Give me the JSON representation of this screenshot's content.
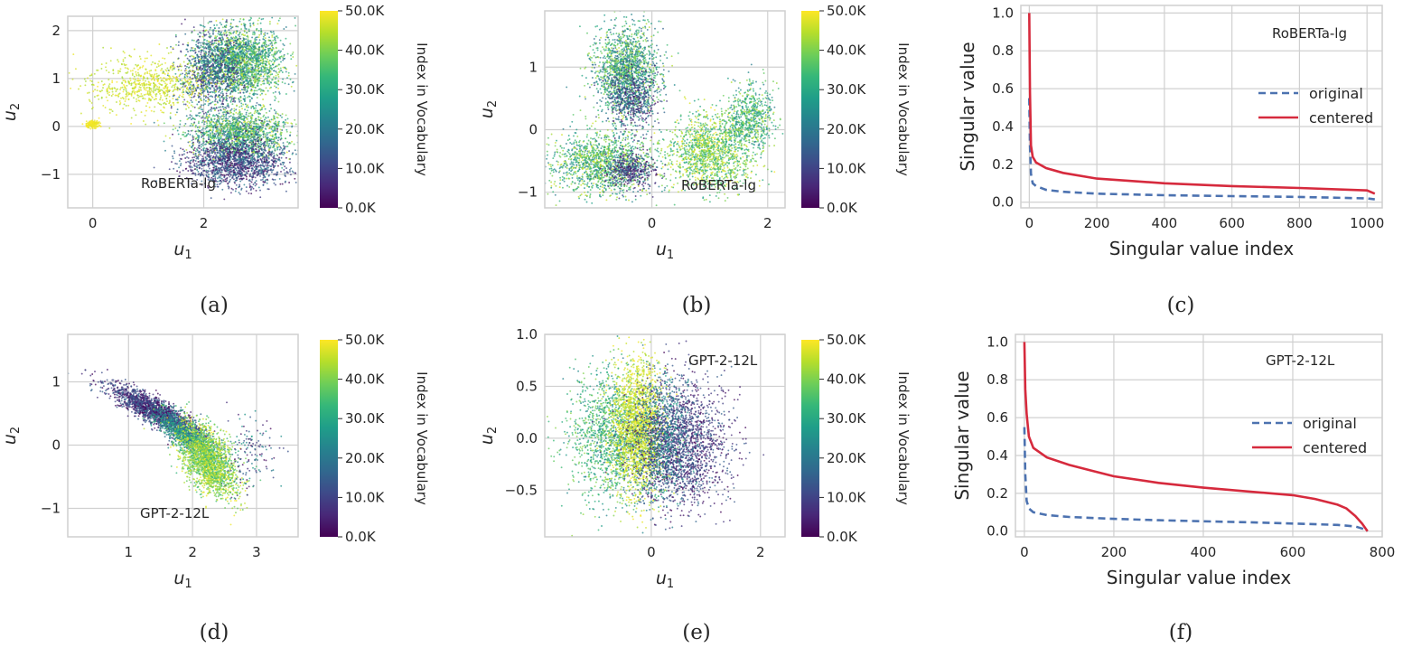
{
  "colors": {
    "viridis": [
      "#440154",
      "#482878",
      "#3e4a89",
      "#31688e",
      "#26828e",
      "#1f9e89",
      "#35b779",
      "#6ece58",
      "#b5de2b",
      "#fde725"
    ],
    "original": "#4c72b0",
    "centered": "#d62a3d"
  },
  "colorbar": {
    "label": "Index in Vocabulary",
    "ticks": [
      "50.0K",
      "40.0K",
      "30.0K",
      "20.0K",
      "10.0K",
      "0.0K"
    ]
  },
  "chart_data": [
    {
      "id": "a",
      "type": "scatter",
      "caption": "(a)",
      "annotation": "RoBERTa-lg",
      "xlabel": "u",
      "xlabel_sub": "1",
      "ylabel": "u",
      "ylabel_sub": "2",
      "xlim": [
        -0.45,
        3.7
      ],
      "ylim": [
        -1.7,
        2.3
      ],
      "xticks": [
        {
          "v": 0,
          "t": "0"
        },
        {
          "v": 2,
          "t": "2"
        }
      ],
      "yticks": [
        {
          "v": 2,
          "t": "2"
        },
        {
          "v": 1,
          "t": "1"
        },
        {
          "v": 0,
          "t": "0"
        },
        {
          "v": -1,
          "t": "−1"
        }
      ],
      "clusters": [
        {
          "x": 2.65,
          "y": 1.35,
          "sx": 0.4,
          "sy": 0.38,
          "n": 2200,
          "c": [
            0.35,
            0.95
          ]
        },
        {
          "x": 2.15,
          "y": 1.1,
          "sx": 0.28,
          "sy": 0.45,
          "n": 900,
          "c": [
            0.05,
            0.55
          ]
        },
        {
          "x": 2.65,
          "y": -0.15,
          "sx": 0.45,
          "sy": 0.25,
          "n": 1500,
          "c": [
            0.3,
            0.95
          ]
        },
        {
          "x": 2.6,
          "y": -0.75,
          "sx": 0.45,
          "sy": 0.25,
          "n": 1500,
          "c": [
            0.0,
            0.45
          ]
        },
        {
          "x": 1.0,
          "y": 0.85,
          "sx": 0.55,
          "sy": 0.28,
          "n": 700,
          "c": [
            0.85,
            1.0
          ]
        },
        {
          "x": 0.0,
          "y": 0.05,
          "sx": 0.06,
          "sy": 0.04,
          "n": 150,
          "c": [
            0.96,
            1.0
          ]
        }
      ]
    },
    {
      "id": "b",
      "type": "scatter",
      "caption": "(b)",
      "annotation": "RoBERTa-lg",
      "xlabel": "u",
      "xlabel_sub": "1",
      "ylabel": "u",
      "ylabel_sub": "2",
      "xlim": [
        -1.85,
        2.3
      ],
      "ylim": [
        -1.25,
        1.9
      ],
      "xticks": [
        {
          "v": 0,
          "t": "0"
        },
        {
          "v": 2,
          "t": "2"
        }
      ],
      "yticks": [
        {
          "v": 1,
          "t": "1"
        },
        {
          "v": 0,
          "t": "0"
        },
        {
          "v": -1,
          "t": "−1"
        }
      ],
      "clusters": [
        {
          "x": -0.45,
          "y": 0.95,
          "sx": 0.28,
          "sy": 0.35,
          "n": 1600,
          "c": [
            0.3,
            0.9
          ]
        },
        {
          "x": -0.35,
          "y": 0.5,
          "sx": 0.22,
          "sy": 0.25,
          "n": 500,
          "c": [
            0.02,
            0.45
          ]
        },
        {
          "x": -0.85,
          "y": -0.55,
          "sx": 0.45,
          "sy": 0.25,
          "n": 1400,
          "c": [
            0.4,
            0.95
          ]
        },
        {
          "x": -0.35,
          "y": -0.65,
          "sx": 0.22,
          "sy": 0.15,
          "n": 400,
          "c": [
            0.0,
            0.35
          ]
        },
        {
          "x": 1.0,
          "y": -0.35,
          "sx": 0.4,
          "sy": 0.3,
          "n": 1400,
          "c": [
            0.55,
            1.0
          ]
        },
        {
          "x": 1.7,
          "y": 0.2,
          "sx": 0.22,
          "sy": 0.25,
          "n": 600,
          "c": [
            0.4,
            0.9
          ]
        }
      ]
    },
    {
      "id": "c",
      "type": "line",
      "caption": "(c)",
      "annotation": "RoBERTa-lg",
      "xlabel": "Singular value index",
      "ylabel": "Singular value",
      "xlim": [
        -25,
        1045
      ],
      "ylim": [
        -0.03,
        1.04
      ],
      "xticks": [
        {
          "v": 0,
          "t": "0"
        },
        {
          "v": 200,
          "t": "200"
        },
        {
          "v": 400,
          "t": "400"
        },
        {
          "v": 600,
          "t": "600"
        },
        {
          "v": 800,
          "t": "800"
        },
        {
          "v": 1000,
          "t": "1000"
        }
      ],
      "yticks": [
        {
          "v": 1.0,
          "t": "1.0"
        },
        {
          "v": 0.8,
          "t": "0.8"
        },
        {
          "v": 0.6,
          "t": "0.6"
        },
        {
          "v": 0.4,
          "t": "0.4"
        },
        {
          "v": 0.2,
          "t": "0.2"
        },
        {
          "v": 0.0,
          "t": "0.0"
        }
      ],
      "series": [
        {
          "name": "original",
          "x": [
            0,
            2,
            5,
            10,
            20,
            50,
            100,
            200,
            400,
            600,
            800,
            1000,
            1023
          ],
          "y": [
            0.55,
            0.3,
            0.15,
            0.1,
            0.085,
            0.065,
            0.055,
            0.045,
            0.037,
            0.032,
            0.028,
            0.02,
            0.015
          ]
        },
        {
          "name": "centered",
          "x": [
            0,
            2,
            5,
            10,
            20,
            50,
            100,
            200,
            400,
            600,
            800,
            1000,
            1023
          ],
          "y": [
            1.0,
            0.58,
            0.3,
            0.24,
            0.21,
            0.18,
            0.155,
            0.125,
            0.1,
            0.085,
            0.075,
            0.062,
            0.045
          ]
        }
      ]
    },
    {
      "id": "d",
      "type": "scatter",
      "caption": "(d)",
      "annotation": "GPT-2-12L",
      "xlabel": "u",
      "xlabel_sub": "1",
      "ylabel": "u",
      "ylabel_sub": "2",
      "xlim": [
        0.05,
        3.65
      ],
      "ylim": [
        -1.45,
        1.75
      ],
      "xticks": [
        {
          "v": 1,
          "t": "1"
        },
        {
          "v": 2,
          "t": "2"
        },
        {
          "v": 3,
          "t": "3"
        }
      ],
      "yticks": [
        {
          "v": 1,
          "t": "1"
        },
        {
          "v": 0,
          "t": "0"
        },
        {
          "v": -1,
          "t": "−1"
        }
      ],
      "clusters": [
        {
          "x": 1.4,
          "y": 0.55,
          "sx": 0.35,
          "sy": 0.2,
          "n": 1800,
          "c": [
            0.0,
            0.35
          ],
          "rho": -0.85
        },
        {
          "x": 1.9,
          "y": 0.15,
          "sx": 0.25,
          "sy": 0.2,
          "n": 1000,
          "c": [
            0.3,
            0.7
          ],
          "rho": -0.8
        },
        {
          "x": 2.25,
          "y": -0.25,
          "sx": 0.22,
          "sy": 0.28,
          "n": 2000,
          "c": [
            0.65,
            1.0
          ],
          "rho": -0.5
        },
        {
          "x": 2.9,
          "y": -0.2,
          "sx": 0.2,
          "sy": 0.3,
          "n": 150,
          "c": [
            0.0,
            0.6
          ]
        }
      ]
    },
    {
      "id": "e",
      "type": "scatter",
      "caption": "(e)",
      "annotation": "GPT-2-12L",
      "xlabel": "u",
      "xlabel_sub": "1",
      "ylabel": "u",
      "ylabel_sub": "2",
      "xlim": [
        -1.95,
        2.45
      ],
      "ylim": [
        -0.95,
        1.0
      ],
      "xticks": [
        {
          "v": 0,
          "t": "0"
        },
        {
          "v": 2,
          "t": "2"
        }
      ],
      "yticks": [
        {
          "v": 1.0,
          "t": "1.0"
        },
        {
          "v": 0.5,
          "t": "0.5"
        },
        {
          "v": 0.0,
          "t": "0.0"
        },
        {
          "v": -0.5,
          "t": "−0.5"
        }
      ],
      "clusters": [
        {
          "x": -0.7,
          "y": 0.0,
          "sx": 0.4,
          "sy": 0.32,
          "n": 1500,
          "c": [
            0.45,
            0.85
          ]
        },
        {
          "x": -0.25,
          "y": 0.1,
          "sx": 0.22,
          "sy": 0.32,
          "n": 1800,
          "c": [
            0.85,
            1.0
          ]
        },
        {
          "x": 0.5,
          "y": -0.05,
          "sx": 0.45,
          "sy": 0.3,
          "n": 2000,
          "c": [
            0.0,
            0.35
          ]
        },
        {
          "x": 0.2,
          "y": 0.0,
          "sx": 0.25,
          "sy": 0.3,
          "n": 700,
          "c": [
            0.25,
            0.6
          ]
        }
      ]
    },
    {
      "id": "f",
      "type": "line",
      "caption": "(f)",
      "annotation": "GPT-2-12L",
      "xlabel": "Singular value index",
      "ylabel": "Singular value",
      "xlim": [
        -20,
        800
      ],
      "ylim": [
        -0.03,
        1.04
      ],
      "xticks": [
        {
          "v": 0,
          "t": "0"
        },
        {
          "v": 200,
          "t": "200"
        },
        {
          "v": 400,
          "t": "400"
        },
        {
          "v": 600,
          "t": "600"
        },
        {
          "v": 800,
          "t": "800"
        }
      ],
      "yticks": [
        {
          "v": 1.0,
          "t": "1.0"
        },
        {
          "v": 0.8,
          "t": "0.8"
        },
        {
          "v": 0.6,
          "t": "0.6"
        },
        {
          "v": 0.4,
          "t": "0.4"
        },
        {
          "v": 0.2,
          "t": "0.2"
        },
        {
          "v": 0.0,
          "t": "0.0"
        }
      ],
      "series": [
        {
          "name": "original",
          "x": [
            0,
            2,
            5,
            10,
            20,
            50,
            100,
            200,
            300,
            400,
            500,
            600,
            700,
            740,
            760,
            767
          ],
          "y": [
            0.55,
            0.3,
            0.16,
            0.12,
            0.1,
            0.085,
            0.075,
            0.065,
            0.058,
            0.052,
            0.047,
            0.04,
            0.033,
            0.025,
            0.01,
            0.0
          ]
        },
        {
          "name": "centered",
          "x": [
            0,
            2,
            5,
            10,
            20,
            50,
            100,
            150,
            200,
            300,
            400,
            500,
            600,
            650,
            700,
            720,
            740,
            755,
            767
          ],
          "y": [
            1.0,
            0.75,
            0.62,
            0.5,
            0.44,
            0.39,
            0.35,
            0.32,
            0.29,
            0.255,
            0.23,
            0.21,
            0.19,
            0.17,
            0.14,
            0.12,
            0.08,
            0.04,
            0.0
          ]
        }
      ]
    }
  ]
}
